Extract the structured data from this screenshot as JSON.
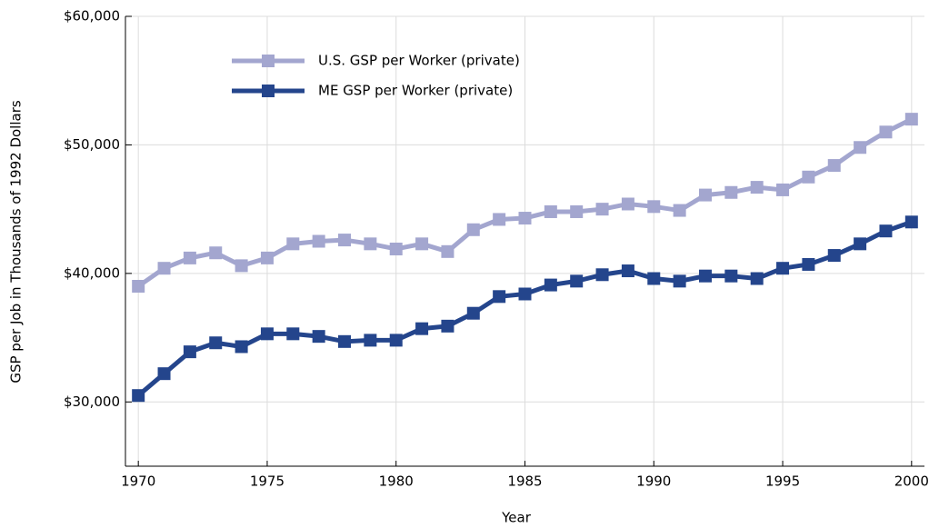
{
  "chart_data": {
    "type": "line",
    "x_label": "Year",
    "y_label": "GSP per Job in Thousands of 1992 Dollars",
    "x": [
      1970,
      1971,
      1972,
      1973,
      1974,
      1975,
      1976,
      1977,
      1978,
      1979,
      1980,
      1981,
      1982,
      1983,
      1984,
      1985,
      1986,
      1987,
      1988,
      1989,
      1990,
      1991,
      1992,
      1993,
      1994,
      1995,
      1996,
      1997,
      1998,
      1999,
      2000
    ],
    "series": [
      {
        "name": "U.S. GSP per Worker (private)",
        "color": "#a3a6cf",
        "values": [
          39000,
          40400,
          41200,
          41600,
          40600,
          41200,
          42300,
          42500,
          42600,
          42300,
          41900,
          42300,
          41700,
          43400,
          44200,
          44300,
          44800,
          44800,
          45000,
          45400,
          45200,
          44900,
          46100,
          46300,
          46700,
          46500,
          47500,
          48400,
          49800,
          51000,
          52000
        ]
      },
      {
        "name": "ME GSP per Worker (private)",
        "color": "#24458c",
        "values": [
          30500,
          32200,
          33900,
          34600,
          34300,
          35300,
          35300,
          35100,
          34700,
          34800,
          34800,
          35700,
          35900,
          36900,
          38200,
          38400,
          39100,
          39400,
          39900,
          40200,
          39600,
          39400,
          39800,
          39800,
          39600,
          40400,
          40700,
          41400,
          42300,
          43300,
          44000
        ]
      }
    ],
    "xlim": [
      1969.5,
      2000.5
    ],
    "xticks": [
      1970,
      1975,
      1980,
      1985,
      1990,
      1995,
      2000
    ],
    "ylim": [
      25000,
      60000
    ],
    "yticks": [
      {
        "value": 30000,
        "label": "$30,000"
      },
      {
        "value": 40000,
        "label": "$40,000"
      },
      {
        "value": 50000,
        "label": "$50,000"
      },
      {
        "value": 60000,
        "label": "$60,000"
      }
    ],
    "grid": true,
    "legend_position": "upper-left"
  }
}
